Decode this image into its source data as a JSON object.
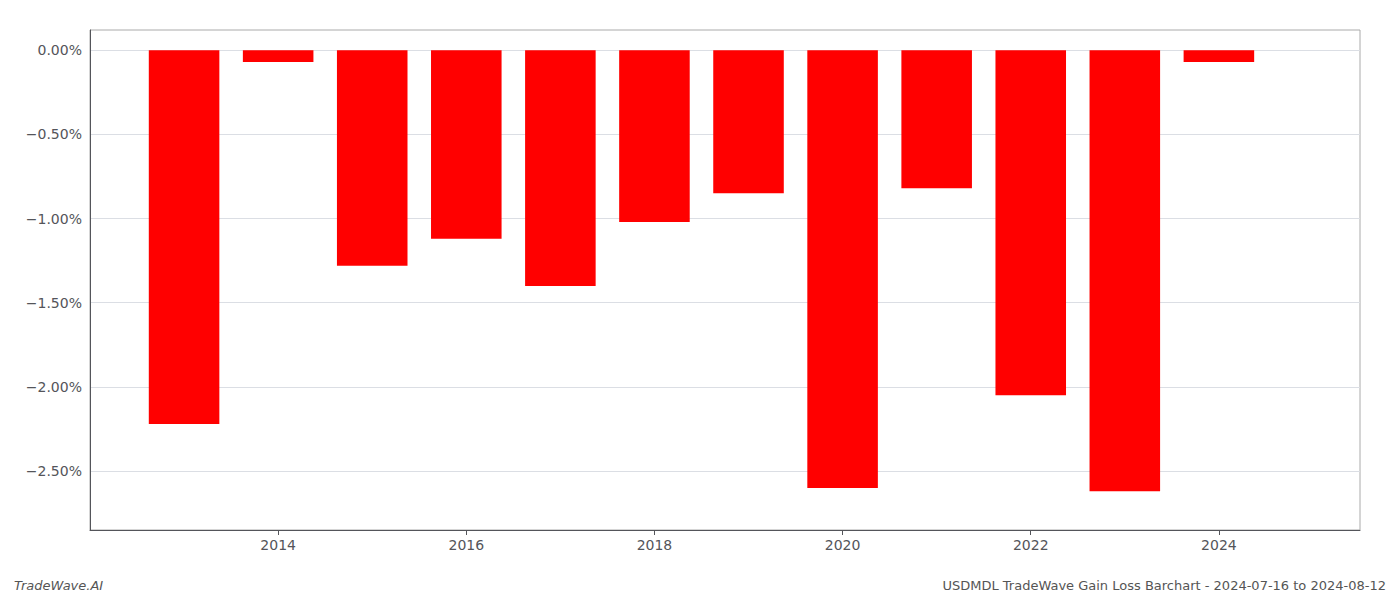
{
  "chart_data": {
    "type": "bar",
    "x": [
      2013,
      2014,
      2015,
      2016,
      2017,
      2018,
      2019,
      2020,
      2021,
      2022,
      2023,
      2024
    ],
    "values": [
      -2.22,
      -0.07,
      -1.28,
      -1.12,
      -1.4,
      -1.02,
      -0.85,
      -2.6,
      -0.82,
      -2.05,
      -2.62,
      -0.07
    ],
    "color": "#ff0000",
    "xlim": [
      2012.0,
      2025.5
    ],
    "xticks": [
      2014,
      2016,
      2018,
      2020,
      2022,
      2024
    ],
    "ylim": [
      -2.85,
      0.12
    ],
    "yticks": [
      {
        "value": 0.0,
        "label": "0.00%"
      },
      {
        "value": -0.5,
        "label": "−0.50%"
      },
      {
        "value": -1.0,
        "label": "−1.00%"
      },
      {
        "value": -1.5,
        "label": "−1.50%"
      },
      {
        "value": -2.0,
        "label": "−2.00%"
      },
      {
        "value": -2.5,
        "label": "−2.50%"
      }
    ],
    "grid": true,
    "annotations": [
      "TradeWave.AI",
      "USDMDL TradeWave Gain Loss Barchart - 2024-07-16 to 2024-08-12"
    ]
  }
}
